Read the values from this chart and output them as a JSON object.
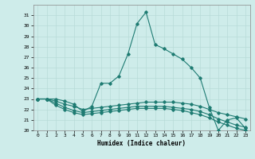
{
  "xlabel": "Humidex (Indice chaleur)",
  "xlim": [
    -0.5,
    23.5
  ],
  "ylim": [
    20,
    32
  ],
  "yticks": [
    20,
    21,
    22,
    23,
    24,
    25,
    26,
    27,
    28,
    29,
    30,
    31
  ],
  "xticks": [
    0,
    1,
    2,
    3,
    4,
    5,
    6,
    7,
    8,
    9,
    10,
    11,
    12,
    13,
    14,
    15,
    16,
    17,
    18,
    19,
    20,
    21,
    22,
    23
  ],
  "bg_color": "#ceecea",
  "line_color": "#1e7b72",
  "grid_color": "#b8dbd8",
  "series": [
    {
      "x": [
        0,
        1,
        2,
        3,
        4,
        5,
        6,
        7,
        8,
        9,
        10,
        11,
        12,
        13,
        14,
        15,
        16,
        17,
        18,
        19,
        20,
        21,
        22,
        23
      ],
      "y": [
        23,
        23,
        23,
        22.8,
        22.5,
        21.8,
        22.3,
        24.5,
        24.5,
        25.2,
        27.3,
        30.2,
        31.3,
        28.2,
        27.8,
        27.3,
        26.8,
        26.0,
        25.0,
        22.2,
        20.0,
        21.0,
        21.2,
        20.2
      ]
    },
    {
      "x": [
        0,
        1,
        2,
        3,
        4,
        5,
        6,
        7,
        8,
        9,
        10,
        11,
        12,
        13,
        14,
        15,
        16,
        17,
        18,
        19,
        20,
        21,
        22,
        23
      ],
      "y": [
        23,
        23,
        22.8,
        22.5,
        22.3,
        22.0,
        22.1,
        22.2,
        22.3,
        22.4,
        22.5,
        22.6,
        22.7,
        22.7,
        22.7,
        22.7,
        22.6,
        22.5,
        22.3,
        22.0,
        21.7,
        21.5,
        21.3,
        21.1
      ]
    },
    {
      "x": [
        0,
        1,
        2,
        3,
        4,
        5,
        6,
        7,
        8,
        9,
        10,
        11,
        12,
        13,
        14,
        15,
        16,
        17,
        18,
        19,
        20,
        21,
        22,
        23
      ],
      "y": [
        23,
        23,
        22.6,
        22.2,
        21.9,
        21.7,
        21.8,
        21.9,
        22.0,
        22.1,
        22.2,
        22.3,
        22.3,
        22.3,
        22.3,
        22.2,
        22.1,
        22.0,
        21.8,
        21.5,
        21.1,
        20.8,
        20.5,
        20.3
      ]
    },
    {
      "x": [
        0,
        1,
        2,
        3,
        4,
        5,
        6,
        7,
        8,
        9,
        10,
        11,
        12,
        13,
        14,
        15,
        16,
        17,
        18,
        19,
        20,
        21,
        22,
        23
      ],
      "y": [
        23,
        23,
        22.4,
        22.0,
        21.7,
        21.5,
        21.6,
        21.7,
        21.8,
        21.9,
        22.0,
        22.1,
        22.1,
        22.1,
        22.1,
        22.0,
        21.9,
        21.7,
        21.5,
        21.2,
        20.8,
        20.5,
        20.2,
        20.0
      ]
    }
  ]
}
